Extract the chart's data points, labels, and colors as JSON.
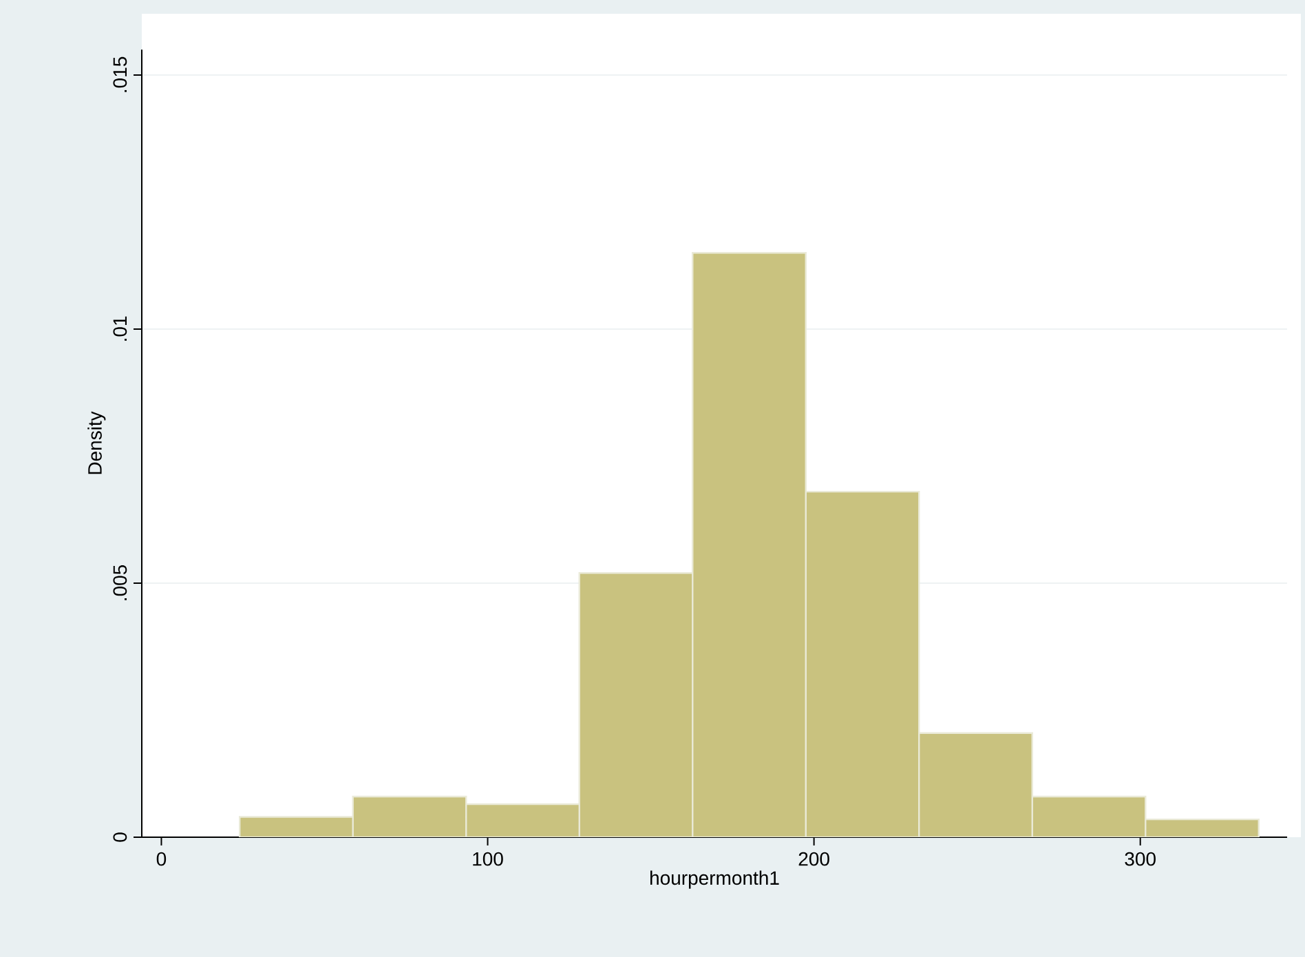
{
  "chart_data": {
    "type": "histogram",
    "xlabel": "hourpermonth1",
    "ylabel": "Density",
    "bins": [
      24,
      58.7,
      93.4,
      128.1,
      162.8,
      197.5,
      232.2,
      266.9,
      301.6,
      336.3
    ],
    "values": [
      0.0004,
      0.0008,
      0.00065,
      0.0052,
      0.0115,
      0.0068,
      0.00205,
      0.0008,
      0.00035
    ],
    "color": "#c9c27f",
    "xlim": [
      -6,
      345
    ],
    "ylim": [
      0,
      0.0155
    ],
    "xticks": [
      0,
      100,
      200,
      300
    ],
    "yticks": [
      0,
      {
        "value": 0.005,
        "label": ".005"
      },
      {
        "value": 0.01,
        "label": ".01"
      },
      {
        "value": 0.015,
        "label": ".015"
      }
    ],
    "grid": "y"
  }
}
